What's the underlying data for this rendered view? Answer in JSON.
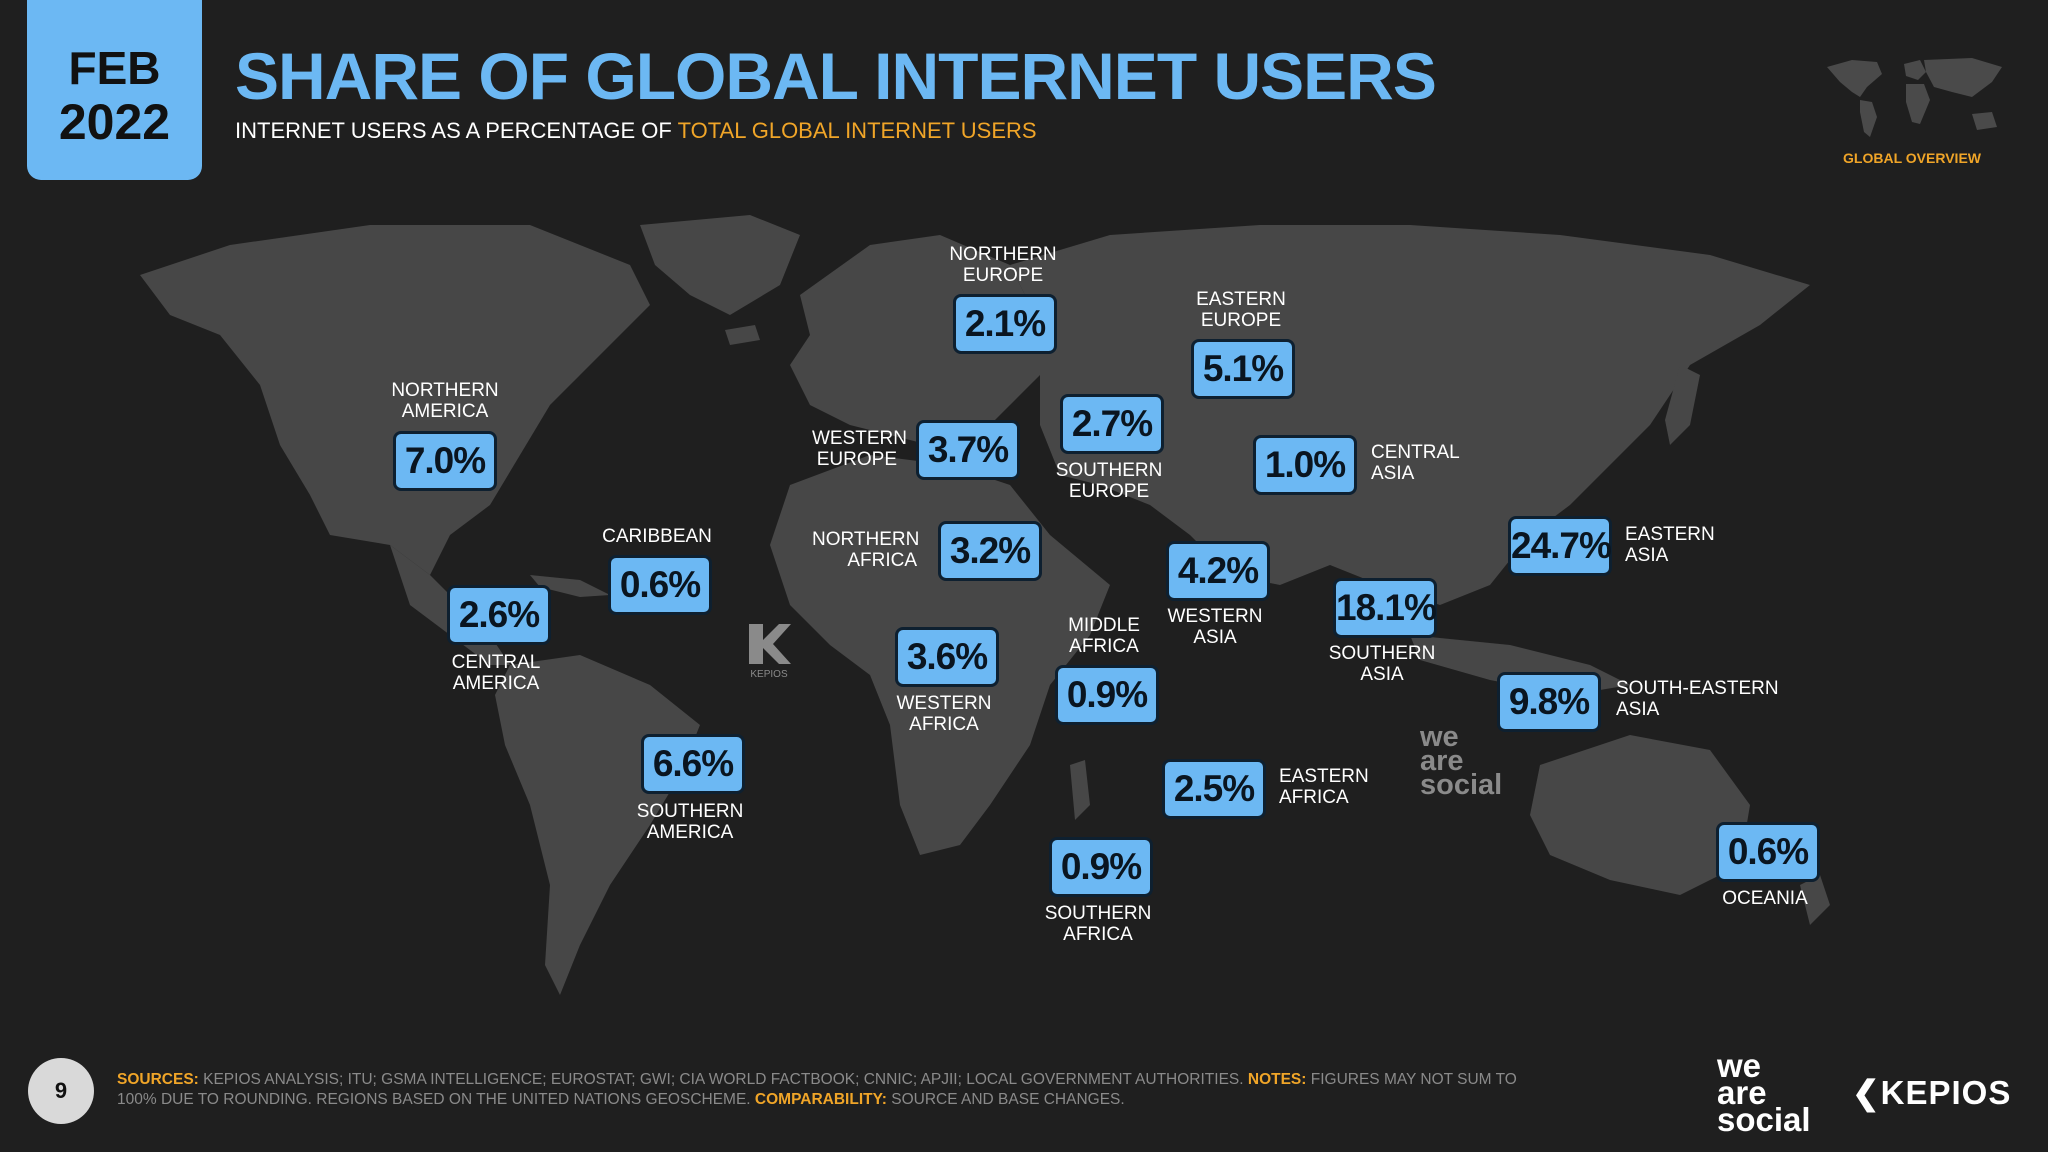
{
  "badge": {
    "month": "FEB",
    "year": "2022"
  },
  "title": "SHARE OF GLOBAL INTERNET USERS",
  "subtitle": {
    "prefix": "INTERNET USERS AS A PERCENTAGE OF ",
    "highlight": "TOTAL GLOBAL INTERNET USERS"
  },
  "section_label": "GLOBAL OVERVIEW",
  "regions": [
    {
      "name_lines": [
        "NORTHERN",
        "AMERICA"
      ],
      "value": "7.0%"
    },
    {
      "name_lines": [
        "CENTRAL",
        "AMERICA"
      ],
      "value": "2.6%"
    },
    {
      "name_lines": [
        "CARIBBEAN"
      ],
      "value": "0.6%"
    },
    {
      "name_lines": [
        "SOUTHERN",
        "AMERICA"
      ],
      "value": "6.6%"
    },
    {
      "name_lines": [
        "NORTHERN",
        "EUROPE"
      ],
      "value": "2.1%"
    },
    {
      "name_lines": [
        "WESTERN",
        "EUROPE"
      ],
      "value": "3.7%"
    },
    {
      "name_lines": [
        "SOUTHERN",
        "EUROPE"
      ],
      "value": "2.7%"
    },
    {
      "name_lines": [
        "EASTERN",
        "EUROPE"
      ],
      "value": "5.1%"
    },
    {
      "name_lines": [
        "NORTHERN",
        "AFRICA"
      ],
      "value": "3.2%"
    },
    {
      "name_lines": [
        "WESTERN",
        "AFRICA"
      ],
      "value": "3.6%"
    },
    {
      "name_lines": [
        "MIDDLE",
        "AFRICA"
      ],
      "value": "0.9%"
    },
    {
      "name_lines": [
        "EASTERN",
        "AFRICA"
      ],
      "value": "2.5%"
    },
    {
      "name_lines": [
        "SOUTHERN",
        "AFRICA"
      ],
      "value": "0.9%"
    },
    {
      "name_lines": [
        "WESTERN",
        "ASIA"
      ],
      "value": "4.2%"
    },
    {
      "name_lines": [
        "CENTRAL",
        "ASIA"
      ],
      "value": "1.0%"
    },
    {
      "name_lines": [
        "SOUTHERN",
        "ASIA"
      ],
      "value": "18.1%"
    },
    {
      "name_lines": [
        "EASTERN",
        "ASIA"
      ],
      "value": "24.7%"
    },
    {
      "name_lines": [
        "SOUTH-EASTERN",
        "ASIA"
      ],
      "value": "9.8%"
    },
    {
      "name_lines": [
        "OCEANIA"
      ],
      "value": "0.6%"
    }
  ],
  "map_watermarks": {
    "kepios_small": "KEPIOS",
    "we_are_social": [
      "we",
      "are",
      "social"
    ]
  },
  "page_number": "9",
  "footer": {
    "sources_label": "SOURCES:",
    "sources_text": " KEPIOS ANALYSIS; ITU; GSMA INTELLIGENCE; EUROSTAT; GWI; CIA WORLD FACTBOOK; CNNIC; APJII; LOCAL GOVERNMENT AUTHORITIES. ",
    "notes_label": "NOTES:",
    "notes_text": " FIGURES MAY NOT SUM TO 100% DUE TO ROUNDING. REGIONS BASED ON THE UNITED NATIONS GEOSCHEME. ",
    "comparability_label": "COMPARABILITY:",
    "comparability_text": " SOURCE AND BASE CHANGES."
  },
  "logos": {
    "was": [
      "we",
      "are",
      "social"
    ],
    "kepios": "KEPIOS"
  },
  "colors": {
    "background": "#1f1f1f",
    "land": "#474747",
    "accent_blue": "#6cb8f3",
    "accent_orange": "#f0a528"
  }
}
